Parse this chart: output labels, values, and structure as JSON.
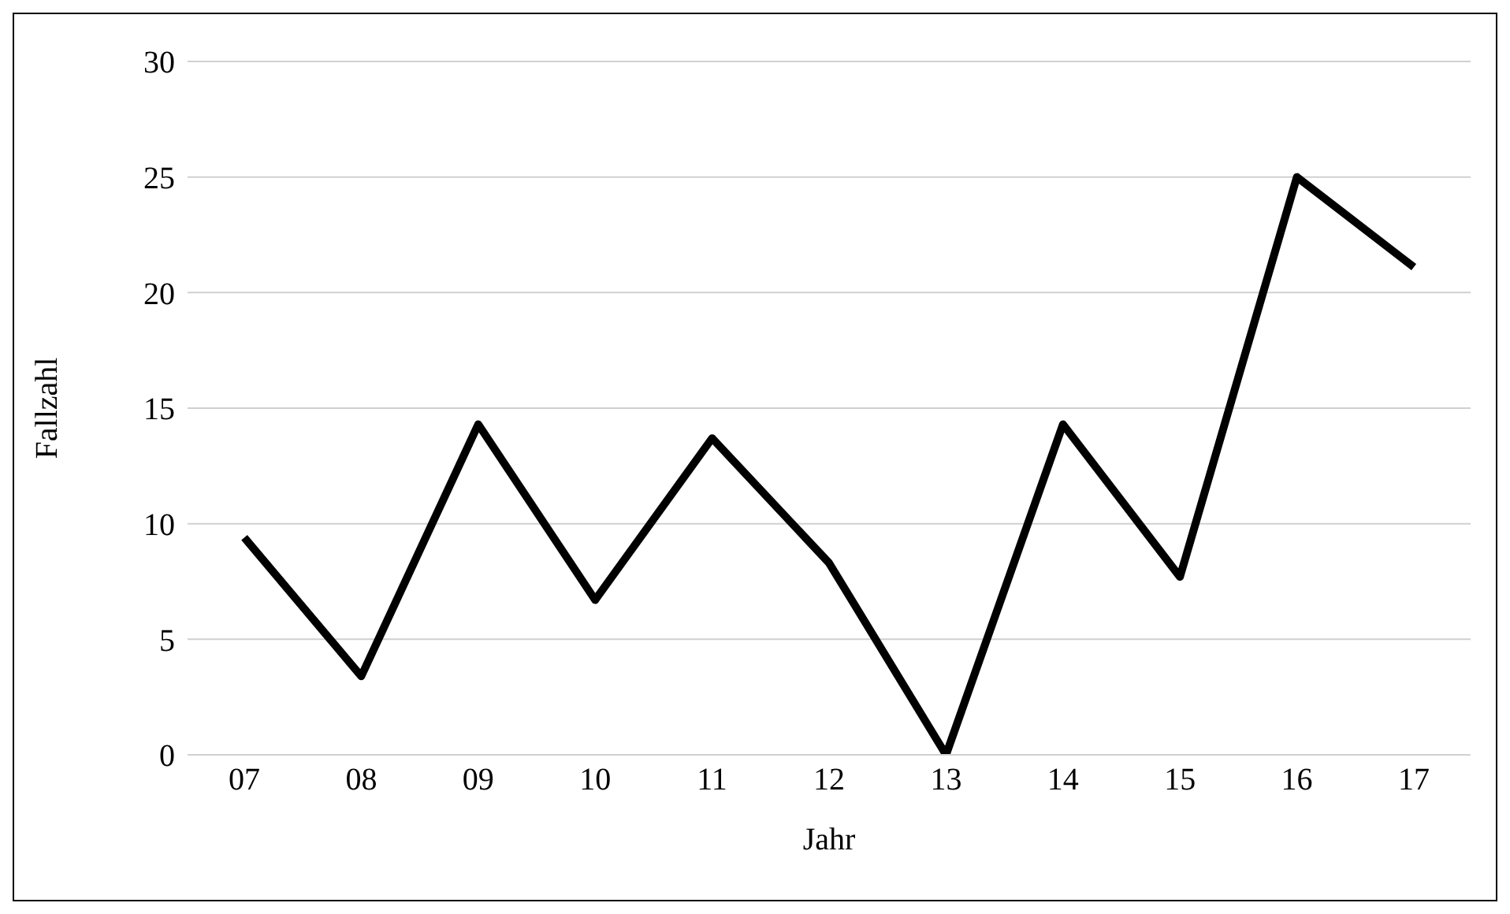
{
  "chart_data": {
    "type": "line",
    "xlabel": "Jahr",
    "ylabel": "Fallzahl",
    "categories": [
      "07",
      "08",
      "09",
      "10",
      "11",
      "12",
      "13",
      "14",
      "15",
      "16",
      "17"
    ],
    "series": [
      {
        "color": "#000000",
        "values": [
          9.4,
          3.4,
          14.3,
          6.7,
          13.7,
          8.3,
          0,
          14.3,
          7.7,
          25,
          21.1
        ]
      }
    ],
    "ylim": [
      0,
      30
    ],
    "yticks": [
      0,
      5,
      10,
      15,
      20,
      25,
      30
    ],
    "grid": "y",
    "marker": "none",
    "line_style": "solid"
  }
}
